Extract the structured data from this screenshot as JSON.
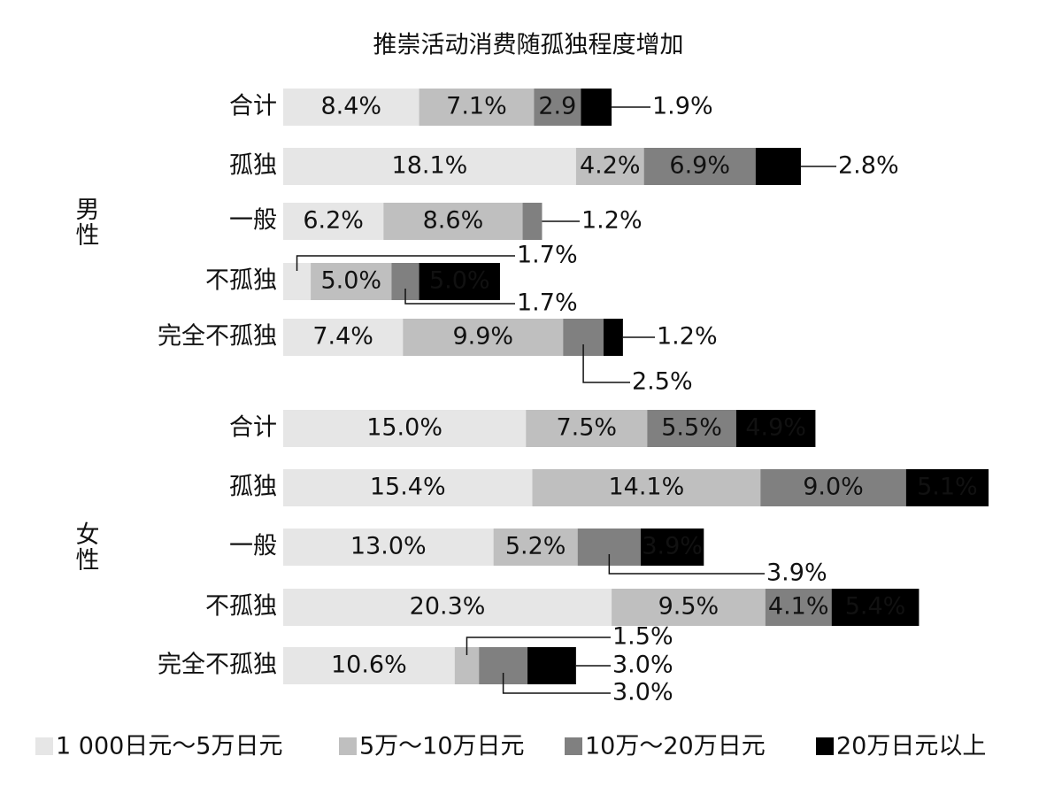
{
  "chart_data": {
    "type": "stacked-bar-horizontal",
    "title": "推崇活动消费随孤独程度增加",
    "groups": [
      "男性",
      "女性"
    ],
    "categories": [
      "合计",
      "孤独",
      "一般",
      "不孤独",
      "完全不孤独",
      "合计",
      "孤独",
      "一般",
      "不孤独",
      "完全不孤独"
    ],
    "series": [
      {
        "name": "1 000日元～5万日元",
        "color": "#e6e6e6",
        "values": [
          8.4,
          18.1,
          6.2,
          1.7,
          7.4,
          15.0,
          15.4,
          13.0,
          20.3,
          10.6
        ],
        "value_labels": [
          "8.4%",
          "18.1%",
          "6.2%",
          "1.7%",
          "7.4%",
          "15.0%",
          "15.4%",
          "13.0%",
          "20.3%",
          "10.6%"
        ]
      },
      {
        "name": "5万～10万日元",
        "color": "#bfbfbf",
        "values": [
          7.1,
          4.2,
          8.6,
          5.0,
          9.9,
          7.5,
          14.1,
          5.2,
          9.5,
          1.5
        ],
        "value_labels": [
          "7.1%",
          "4.2%",
          "8.6%",
          "5.0%",
          "9.9%",
          "7.5%",
          "14.1%",
          "5.2%",
          "9.5%",
          "1.5%"
        ]
      },
      {
        "name": "10万～20万日元",
        "color": "#808080",
        "values": [
          2.9,
          6.9,
          1.2,
          1.7,
          2.5,
          5.5,
          9.0,
          3.9,
          4.1,
          3.0
        ],
        "value_labels": [
          "2.9",
          "6.9%",
          "1.2%",
          "1.7%",
          "2.5%",
          "5.5%",
          "9.0%",
          "3.9%",
          "4.1%",
          "3.0%"
        ]
      },
      {
        "name": "20万日元以上",
        "color": "#000000",
        "values": [
          1.9,
          2.8,
          null,
          5.0,
          1.2,
          4.9,
          5.1,
          3.9,
          5.4,
          3.0
        ],
        "value_labels": [
          "1.9%",
          "2.8%",
          null,
          "5.0%",
          "1.2%",
          "4.9%",
          "5.1%",
          "3.9%",
          "5.4%",
          "3.0%"
        ]
      }
    ]
  }
}
